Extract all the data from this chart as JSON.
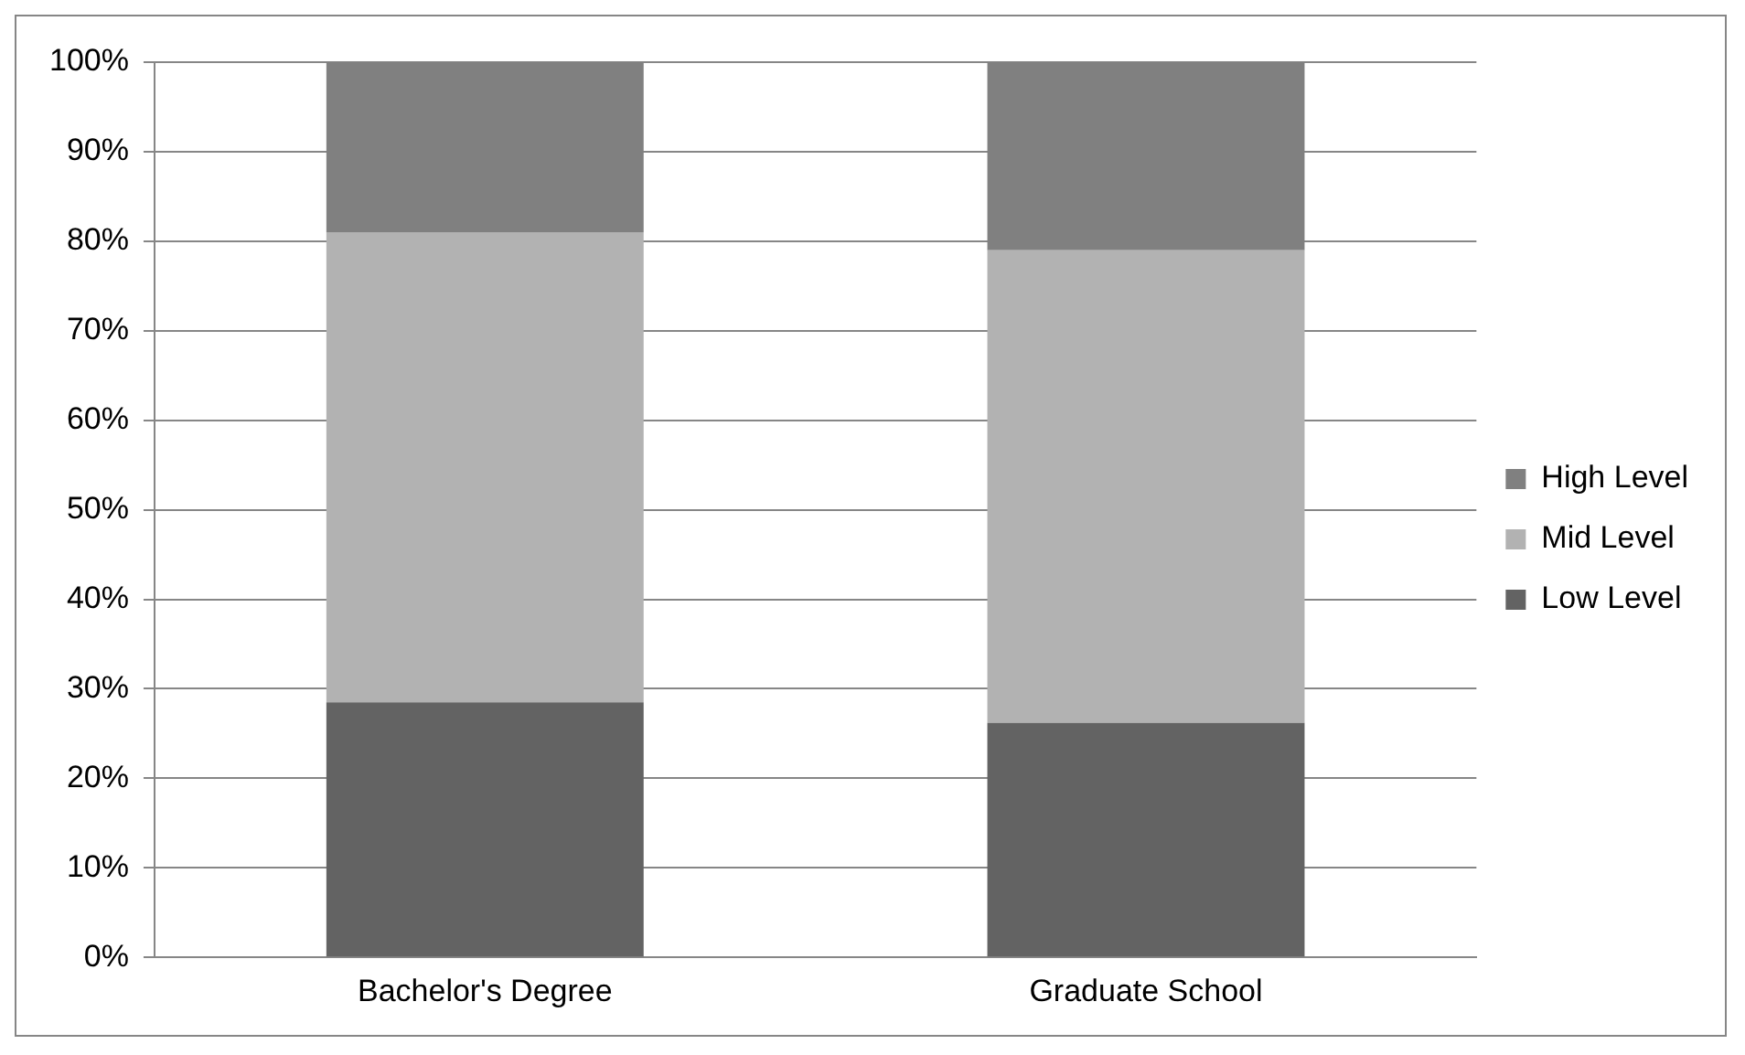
{
  "chart_data": {
    "type": "bar",
    "stacked": true,
    "categories": [
      "Bachelor's Degree",
      "Graduate School"
    ],
    "series": [
      {
        "name": "Low Level",
        "color": "#636363",
        "values": [
          28.5,
          26.2
        ]
      },
      {
        "name": "Mid Level",
        "color": "#b2b2b2",
        "values": [
          52.5,
          52.8
        ]
      },
      {
        "name": "High Level",
        "color": "#808080",
        "values": [
          19,
          21
        ]
      }
    ],
    "ylim": [
      0,
      100
    ],
    "yticks": [
      {
        "value": 0,
        "label": "0%"
      },
      {
        "value": 10,
        "label": "10%"
      },
      {
        "value": 20,
        "label": "20%"
      },
      {
        "value": 30,
        "label": "30%"
      },
      {
        "value": 40,
        "label": "40%"
      },
      {
        "value": 50,
        "label": "50%"
      },
      {
        "value": 60,
        "label": "60%"
      },
      {
        "value": 70,
        "label": "70%"
      },
      {
        "value": 80,
        "label": "80%"
      },
      {
        "value": 90,
        "label": "90%"
      },
      {
        "value": 100,
        "label": "100%"
      }
    ],
    "grid": "y",
    "legend": "right"
  }
}
